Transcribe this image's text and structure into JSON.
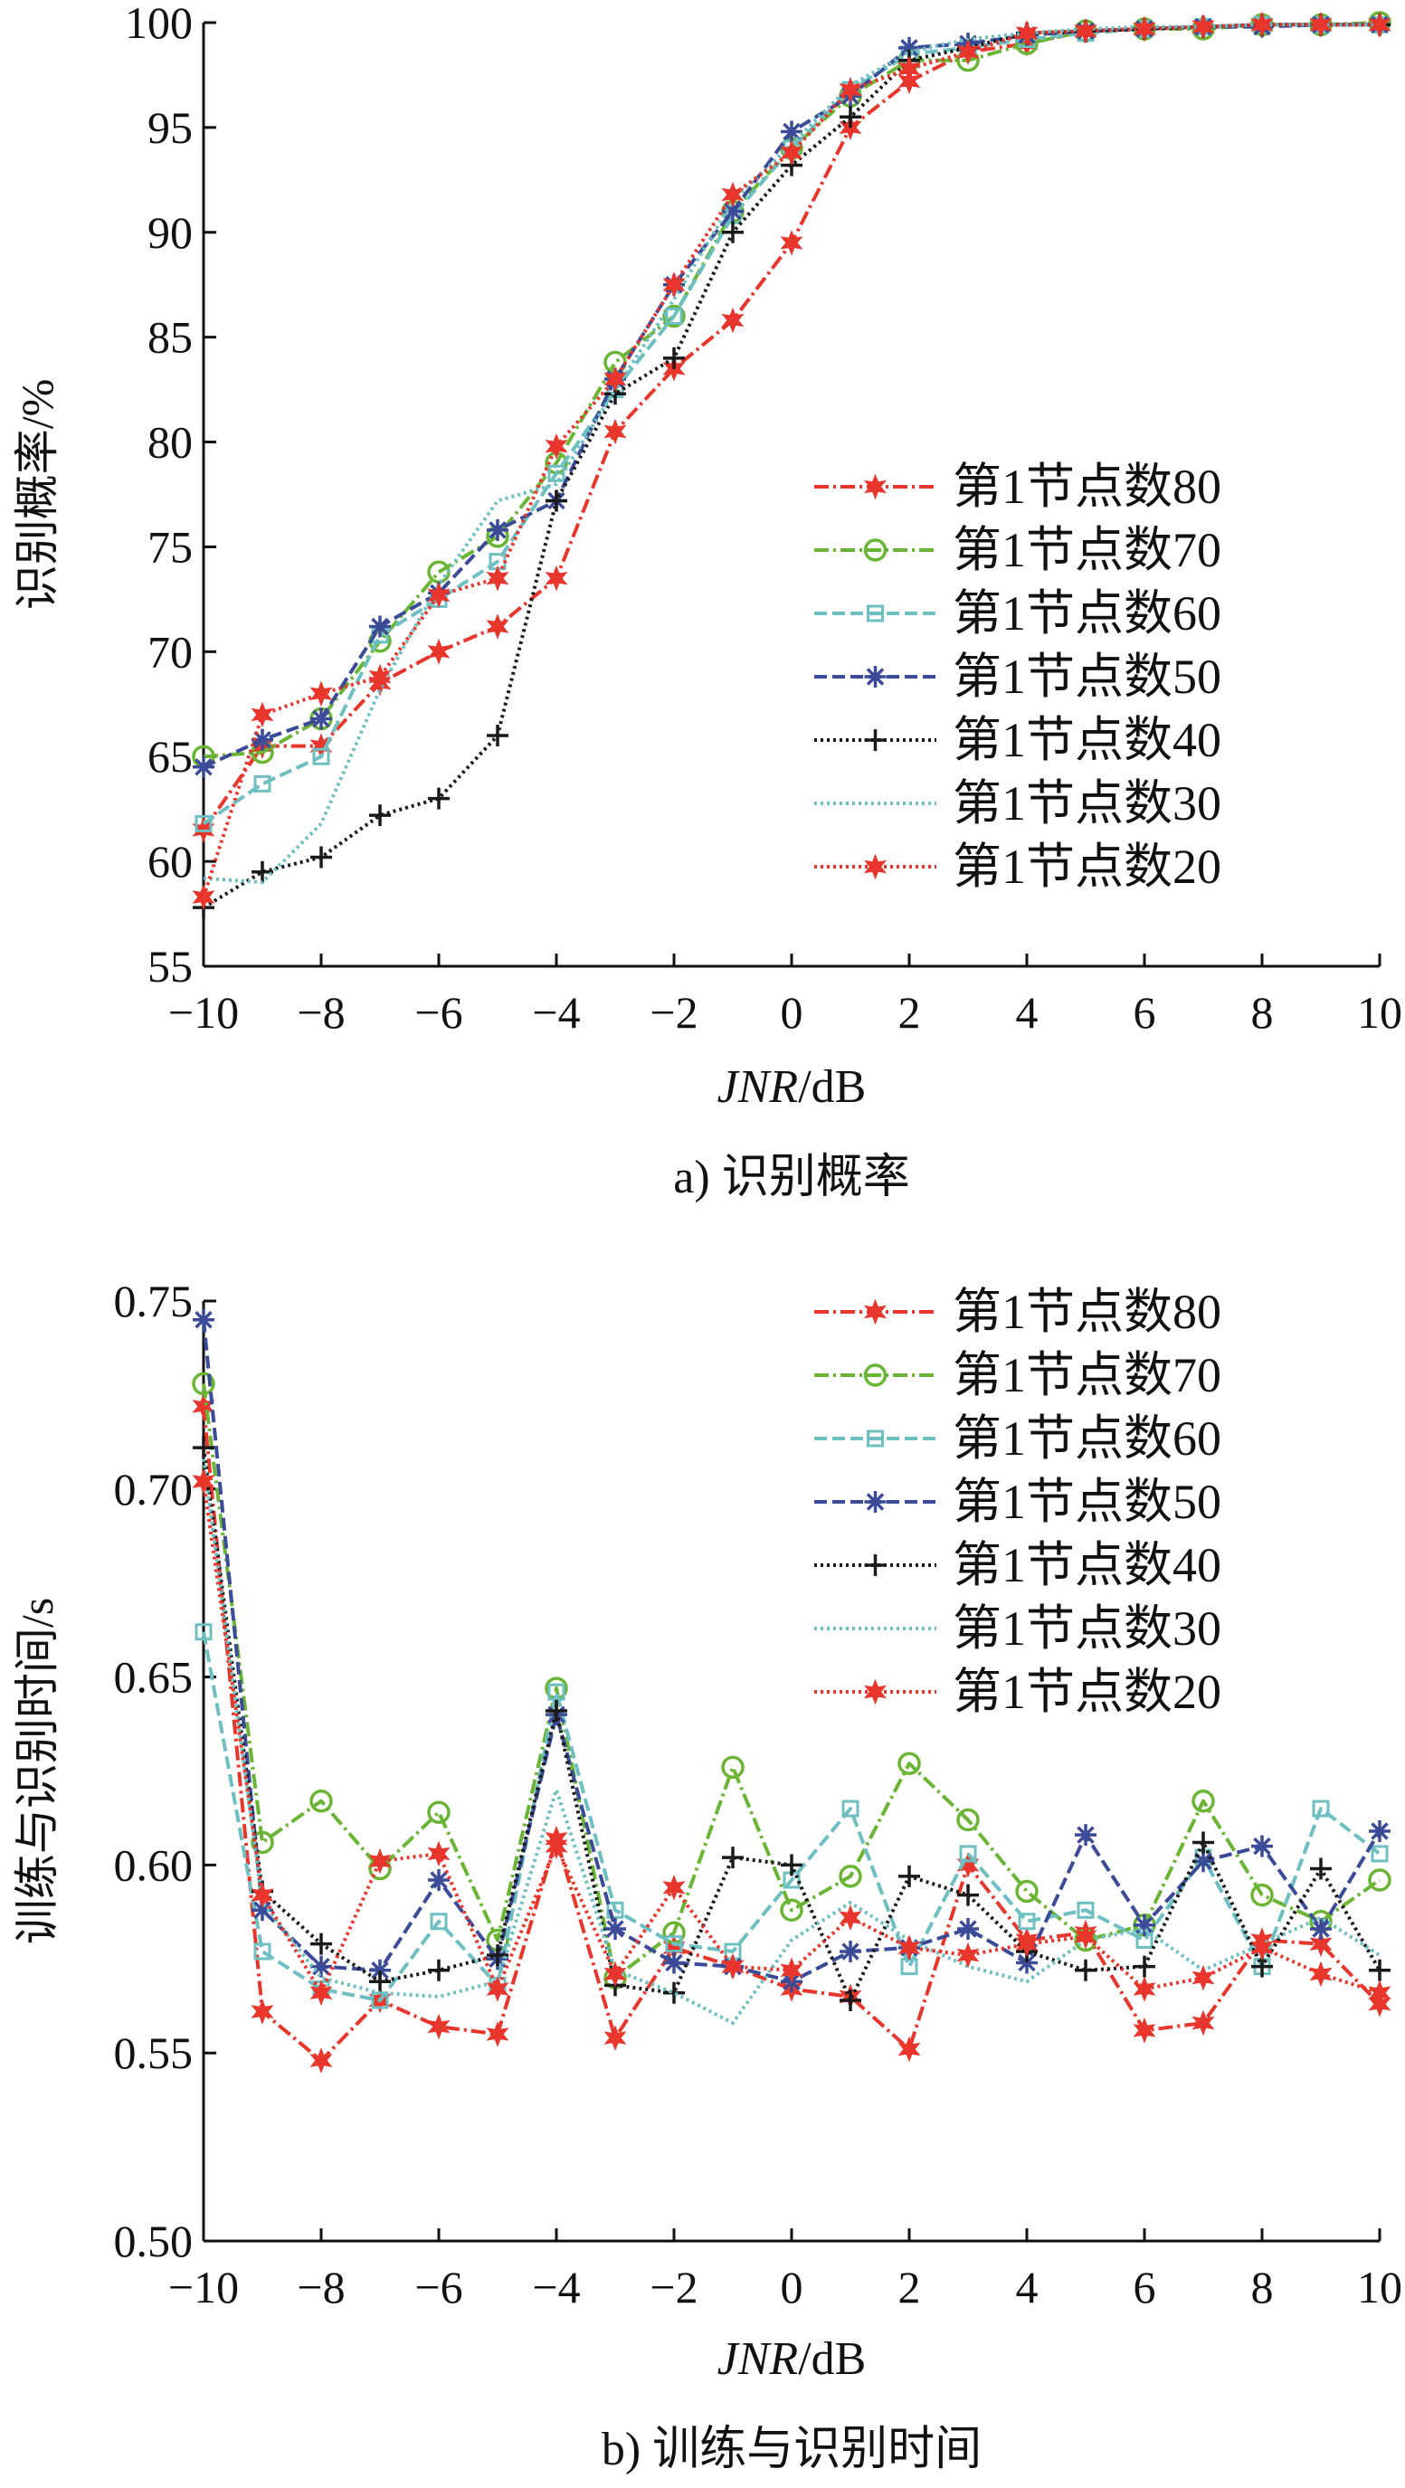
{
  "chart_data": [
    {
      "type": "line",
      "caption": "a) 识别概率",
      "xlabel_italic": "JNR",
      "xlabel_unit": "/dB",
      "ylabel": "识别概率/%",
      "xlim": [
        -10,
        10
      ],
      "ylim": [
        55,
        100
      ],
      "xticks": [
        "−10",
        "−8",
        "−6",
        "−4",
        "−2",
        "0",
        "2",
        "4",
        "6",
        "8",
        "10"
      ],
      "yticks": [
        "55",
        "60",
        "65",
        "70",
        "75",
        "80",
        "85",
        "90",
        "95",
        "100"
      ],
      "x": [
        -10,
        -9,
        -8,
        -7,
        -6,
        -5,
        -4,
        -3,
        -2,
        -1,
        0,
        1,
        2,
        3,
        4,
        5,
        6,
        7,
        8,
        9,
        10
      ],
      "legend_position": "right",
      "series": [
        {
          "name": "第1节点数80",
          "color": "#e8362d",
          "dash": "16 5 3 5",
          "marker": "star6",
          "values": [
            61.5,
            65.5,
            65.5,
            68.5,
            70.0,
            71.2,
            73.5,
            80.5,
            83.5,
            85.8,
            89.5,
            95.0,
            97.2,
            98.6,
            99.0,
            99.6,
            99.7,
            99.8,
            99.9,
            99.9,
            99.9
          ]
        },
        {
          "name": "第1节点数70",
          "color": "#6ab534",
          "dash": "16 5 3 5",
          "marker": "circle",
          "values": [
            65.0,
            65.2,
            66.8,
            70.5,
            73.8,
            75.5,
            79.0,
            83.8,
            86.0,
            91.0,
            94.0,
            96.5,
            98.2,
            98.2,
            99.0,
            99.6,
            99.7,
            99.7,
            99.9,
            99.9,
            100.0
          ]
        },
        {
          "name": "第1节点数60",
          "color": "#6dbfc1",
          "dash": "14 6",
          "marker": "square",
          "values": [
            61.8,
            63.7,
            65.0,
            70.8,
            72.5,
            74.3,
            78.5,
            82.5,
            86.0,
            90.8,
            94.0,
            96.8,
            98.5,
            98.8,
            99.2,
            99.5,
            99.7,
            99.8,
            99.9,
            99.9,
            99.9
          ]
        },
        {
          "name": "第1节点数50",
          "color": "#3b4b97",
          "dash": "14 6",
          "marker": "asterisk",
          "values": [
            64.5,
            65.8,
            66.8,
            71.2,
            72.8,
            75.8,
            77.2,
            83.0,
            87.5,
            91.0,
            94.8,
            96.5,
            98.8,
            99.0,
            99.4,
            99.6,
            99.7,
            99.8,
            99.8,
            99.9,
            99.9
          ]
        },
        {
          "name": "第1节点数40",
          "color": "#1a1a1a",
          "dash": "3 4",
          "marker": "plus",
          "values": [
            57.8,
            59.5,
            60.2,
            62.2,
            63.0,
            66.0,
            77.2,
            82.3,
            84.0,
            90.0,
            93.2,
            95.5,
            98.2,
            98.8,
            99.5,
            99.6,
            99.7,
            99.8,
            99.9,
            99.9,
            99.9
          ]
        },
        {
          "name": "第1节点数30",
          "color": "#6dbfc1",
          "dash": "3 4",
          "marker": "none",
          "values": [
            59.2,
            59.0,
            61.8,
            68.2,
            73.2,
            77.2,
            78.0,
            82.5,
            86.8,
            91.5,
            94.2,
            97.0,
            98.6,
            99.2,
            99.5,
            99.7,
            99.8,
            99.8,
            99.9,
            99.9,
            99.9
          ]
        },
        {
          "name": "第1节点数20",
          "color": "#e8362d",
          "dash": "3 4",
          "marker": "star6",
          "values": [
            58.3,
            67.0,
            68.0,
            68.8,
            72.7,
            73.5,
            79.8,
            83.0,
            87.5,
            91.8,
            93.8,
            96.8,
            97.8,
            98.6,
            99.5,
            99.6,
            99.7,
            99.8,
            99.9,
            99.9,
            99.9
          ]
        }
      ]
    },
    {
      "type": "line",
      "caption": "b) 训练与识别时间",
      "xlabel_italic": "JNR",
      "xlabel_unit": "/dB",
      "ylabel": "训练与识别时间/s",
      "xlim": [
        -10,
        10
      ],
      "ylim": [
        0.5,
        0.75
      ],
      "xticks": [
        "−10",
        "−8",
        "−6",
        "−4",
        "−2",
        "0",
        "2",
        "4",
        "6",
        "8",
        "10"
      ],
      "yticks": [
        "0.50",
        "0.55",
        "0.60",
        "0.65",
        "0.70",
        "0.75"
      ],
      "x": [
        -10,
        -9,
        -8,
        -7,
        -6,
        -5,
        -4,
        -3,
        -2,
        -1,
        0,
        1,
        2,
        3,
        4,
        5,
        6,
        7,
        8,
        9,
        10
      ],
      "legend_position": "top-right",
      "series": [
        {
          "name": "第1节点数80",
          "color": "#e8362d",
          "dash": "16 5 3 5",
          "marker": "star6",
          "values": [
            0.722,
            0.561,
            0.548,
            0.564,
            0.557,
            0.555,
            0.607,
            0.554,
            0.578,
            0.573,
            0.567,
            0.565,
            0.551,
            0.6,
            0.58,
            0.582,
            0.556,
            0.558,
            0.58,
            0.579,
            0.563
          ]
        },
        {
          "name": "第1节点数70",
          "color": "#6ab534",
          "dash": "16 5 3 5",
          "marker": "circle",
          "values": [
            0.728,
            0.606,
            0.617,
            0.599,
            0.614,
            0.58,
            0.647,
            0.57,
            0.582,
            0.626,
            0.588,
            0.597,
            0.627,
            0.612,
            0.593,
            0.58,
            0.584,
            0.617,
            0.592,
            0.585,
            0.596
          ]
        },
        {
          "name": "第1节点数60",
          "color": "#6dbfc1",
          "dash": "14 6",
          "marker": "square",
          "values": [
            0.662,
            0.577,
            0.567,
            0.564,
            0.585,
            0.568,
            0.646,
            0.588,
            0.579,
            0.577,
            0.596,
            0.615,
            0.573,
            0.603,
            0.585,
            0.588,
            0.58,
            0.602,
            0.573,
            0.615,
            0.603
          ]
        },
        {
          "name": "第1节点数50",
          "color": "#3b4b97",
          "dash": "14 6",
          "marker": "asterisk",
          "values": [
            0.745,
            0.588,
            0.573,
            0.572,
            0.596,
            0.575,
            0.64,
            0.583,
            0.574,
            0.573,
            0.569,
            0.577,
            0.578,
            0.583,
            0.574,
            0.608,
            0.584,
            0.601,
            0.605,
            0.583,
            0.609
          ]
        },
        {
          "name": "第1节点数40",
          "color": "#1a1a1a",
          "dash": "3 4",
          "marker": "plus",
          "values": [
            0.711,
            0.593,
            0.579,
            0.569,
            0.572,
            0.576,
            0.641,
            0.568,
            0.566,
            0.602,
            0.6,
            0.564,
            0.597,
            0.592,
            0.577,
            0.572,
            0.573,
            0.606,
            0.573,
            0.599,
            0.572
          ]
        },
        {
          "name": "第1节点数30",
          "color": "#6dbfc1",
          "dash": "3 4",
          "marker": "none",
          "values": [
            0.708,
            0.59,
            0.57,
            0.566,
            0.565,
            0.569,
            0.62,
            0.572,
            0.566,
            0.558,
            0.58,
            0.59,
            0.58,
            0.573,
            0.569,
            0.58,
            0.583,
            0.572,
            0.579,
            0.586,
            0.576
          ]
        },
        {
          "name": "第1节点数20",
          "color": "#e8362d",
          "dash": "3 4",
          "marker": "star6",
          "values": [
            0.702,
            0.592,
            0.566,
            0.601,
            0.603,
            0.567,
            0.605,
            0.571,
            0.594,
            0.573,
            0.572,
            0.586,
            0.578,
            0.576,
            0.579,
            0.581,
            0.567,
            0.57,
            0.578,
            0.571,
            0.566
          ]
        }
      ]
    }
  ]
}
